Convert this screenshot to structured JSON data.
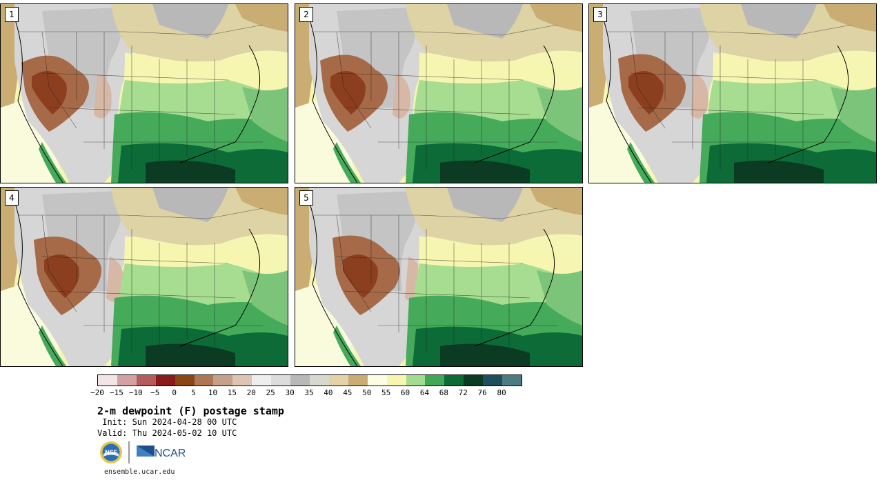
{
  "panels": [
    {
      "label": "1"
    },
    {
      "label": "2"
    },
    {
      "label": "3"
    },
    {
      "label": "4"
    },
    {
      "label": "5"
    }
  ],
  "colorbar": {
    "colors": [
      "#f3e5e5",
      "#d3a1a1",
      "#b45c5c",
      "#8b1a1a",
      "#8a4613",
      "#ad7654",
      "#c7a08a",
      "#dec4b4",
      "#eeeeee",
      "#dcdcdc",
      "#b8b8b8",
      "#d8d8cc",
      "#e3d3a8",
      "#c9ad72",
      "#fdfde4",
      "#f6f6b0",
      "#a3dc8f",
      "#41a858",
      "#0c6b36",
      "#0b3b22",
      "#1d4f5e",
      "#4d7b82"
    ],
    "ticks": [
      "−20",
      "−15",
      "−10",
      "−5",
      "0",
      "5",
      "10",
      "15",
      "20",
      "25",
      "30",
      "35",
      "40",
      "45",
      "50",
      "55",
      "60",
      "64",
      "68",
      "72",
      "76",
      "80"
    ]
  },
  "title": "2-m dewpoint (F) postage stamp",
  "init": " Init: Sun 2024-04-28 00 UTC",
  "valid": "Valid: Thu 2024-05-02 10 UTC",
  "logos": {
    "nsf": "NSF",
    "ncar": "NCAR"
  },
  "url": "ensemble.ucar.edu"
}
